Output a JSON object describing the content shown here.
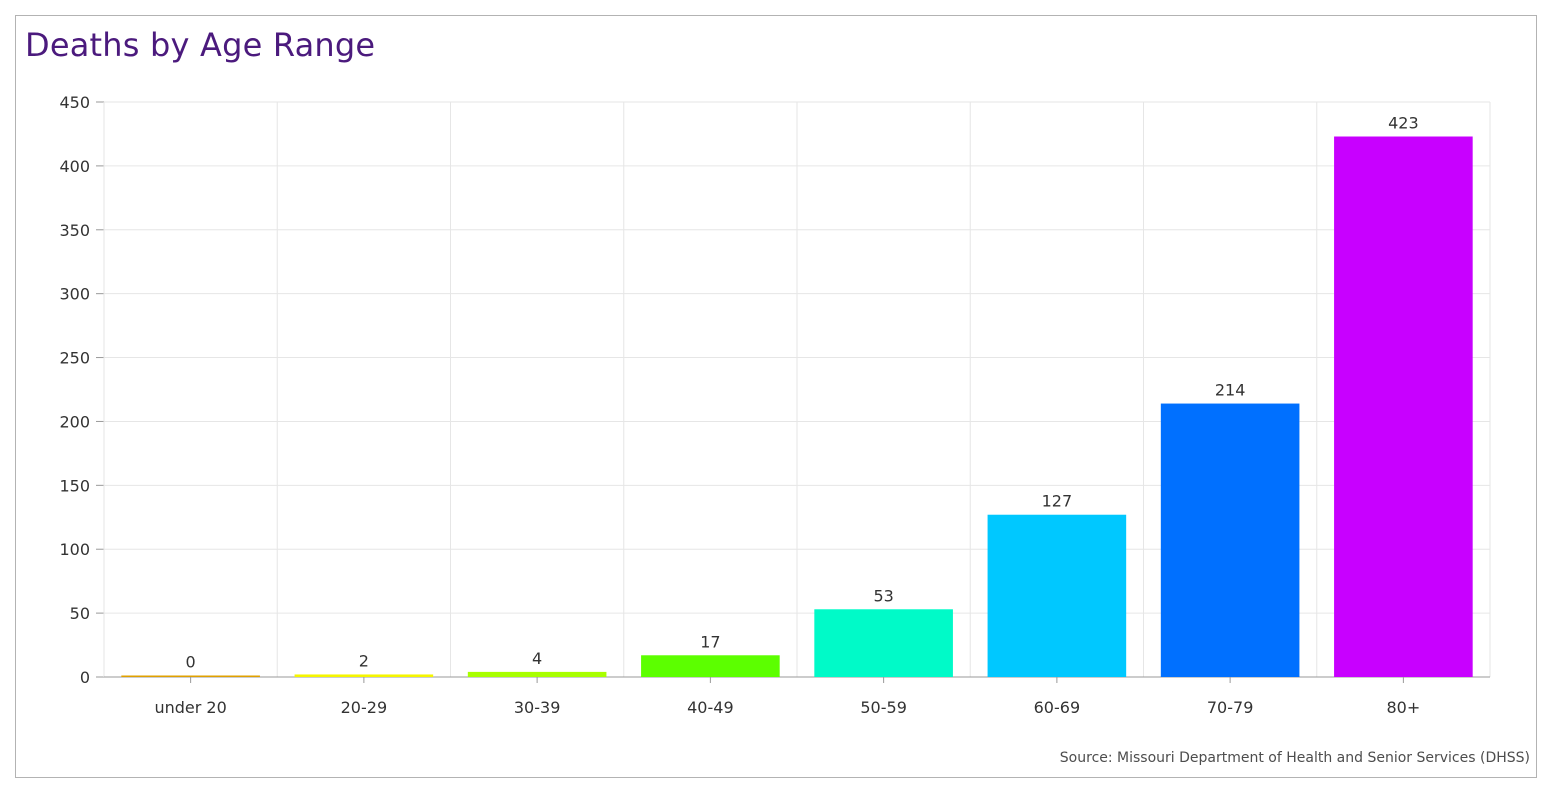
{
  "chart_data": {
    "type": "bar",
    "title": "Deaths by Age Range",
    "categories": [
      "under 20",
      "20-29",
      "30-39",
      "40-49",
      "50-59",
      "60-69",
      "70-79",
      "80+"
    ],
    "values": [
      0,
      2,
      4,
      17,
      53,
      127,
      214,
      423
    ],
    "colors": [
      "#e0a100",
      "#f5f500",
      "#a8ff00",
      "#5cff00",
      "#00fac8",
      "#00c8ff",
      "#0070ff",
      "#c800ff"
    ],
    "ylim": [
      0,
      450
    ],
    "yticks": [
      0,
      50,
      100,
      150,
      200,
      250,
      300,
      350,
      400,
      450
    ],
    "grid": true,
    "source": "Source: Missouri Department of Health and Senior Services (DHSS)"
  }
}
